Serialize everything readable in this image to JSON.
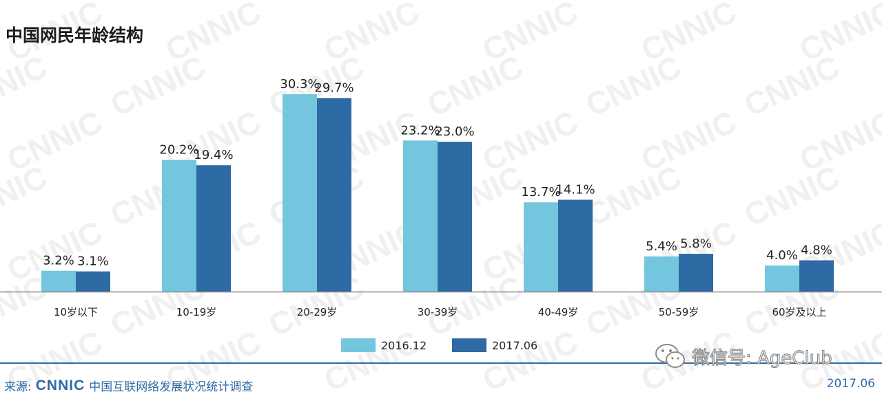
{
  "title": "中国网民年龄结构",
  "watermark_text": "CNNIC",
  "chart_data": {
    "type": "bar",
    "title": "中国网民年龄结构",
    "categories": [
      "10岁以下",
      "10-19岁",
      "20-29岁",
      "30-39岁",
      "40-49岁",
      "50-59岁",
      "60岁及以上"
    ],
    "series": [
      {
        "name": "2016.12",
        "color": "#74c6df",
        "values": [
          3.2,
          20.2,
          30.3,
          23.2,
          13.7,
          5.4,
          4.0
        ],
        "labels": [
          "3.2%",
          "20.2%",
          "30.3%",
          "23.2%",
          "13.7%",
          "5.4%",
          "4.0%"
        ]
      },
      {
        "name": "2017.06",
        "color": "#2e6aa3",
        "values": [
          3.1,
          19.4,
          29.7,
          23.0,
          14.1,
          5.8,
          4.8
        ],
        "labels": [
          "3.1%",
          "19.4%",
          "29.7%",
          "23.0%",
          "14.1%",
          "5.8%",
          "4.8%"
        ]
      }
    ],
    "xlabel": "",
    "ylabel": "",
    "ylim": [
      0,
      30.3
    ],
    "grid": false,
    "legend_position": "bottom-center"
  },
  "footer": {
    "source_prefix": "来源:",
    "source_logo": "CNNIC",
    "source_org": "中国互联网络发展状况统计调查",
    "date": "2017.06"
  },
  "wechat": {
    "text": "微信号: AgeClub",
    "icon": "wechat-icon"
  }
}
